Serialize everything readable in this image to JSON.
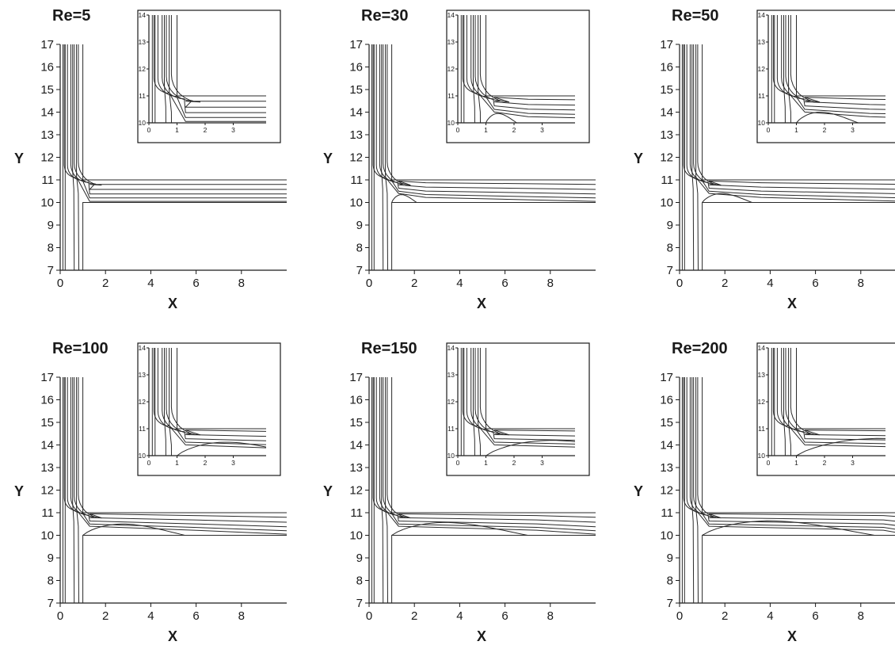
{
  "chart_data": [
    {
      "type": "line",
      "title": "Re=5",
      "re": 5,
      "xlabel": "X",
      "ylabel": "Y",
      "xlim": [
        0,
        10
      ],
      "ylim": [
        7,
        17
      ],
      "xticks": [
        "0",
        "2",
        "4",
        "6",
        "8"
      ],
      "yticks": [
        "7",
        "8",
        "9",
        "10",
        "11",
        "12",
        "13",
        "14",
        "15",
        "16",
        "17"
      ],
      "recirculation_end_x": 0,
      "inset": {
        "xlim": [
          0,
          4
        ],
        "ylim": [
          10,
          14
        ],
        "xticks": [
          "0",
          "1",
          "2",
          "3"
        ],
        "yticks": [
          "10",
          "11",
          "12",
          "13",
          "14"
        ]
      }
    },
    {
      "type": "line",
      "title": "Re=30",
      "re": 30,
      "xlabel": "X",
      "ylabel": "Y",
      "xlim": [
        0,
        10
      ],
      "ylim": [
        7,
        17
      ],
      "xticks": [
        "0",
        "2",
        "4",
        "6",
        "8"
      ],
      "yticks": [
        "7",
        "8",
        "9",
        "10",
        "11",
        "12",
        "13",
        "14",
        "15",
        "16",
        "17"
      ],
      "recirculation_end_x": 2.1,
      "inset": {
        "xlim": [
          0,
          4
        ],
        "ylim": [
          10,
          14
        ],
        "xticks": [
          "0",
          "1",
          "2",
          "3"
        ],
        "yticks": [
          "10",
          "11",
          "12",
          "13",
          "14"
        ]
      }
    },
    {
      "type": "line",
      "title": "Re=50",
      "re": 50,
      "xlabel": "X",
      "ylabel": "Y",
      "xlim": [
        0,
        10
      ],
      "ylim": [
        7,
        17
      ],
      "xticks": [
        "0",
        "2",
        "4",
        "6",
        "8"
      ],
      "yticks": [
        "7",
        "8",
        "9",
        "10",
        "11",
        "12",
        "13",
        "14",
        "15",
        "16",
        "17"
      ],
      "recirculation_end_x": 3.2,
      "inset": {
        "xlim": [
          0,
          4
        ],
        "ylim": [
          10,
          14
        ],
        "xticks": [
          "0",
          "1",
          "2",
          "3"
        ],
        "yticks": [
          "10",
          "11",
          "12",
          "13",
          "14"
        ]
      }
    },
    {
      "type": "line",
      "title": "Re=100",
      "re": 100,
      "xlabel": "X",
      "ylabel": "Y",
      "xlim": [
        0,
        10
      ],
      "ylim": [
        7,
        17
      ],
      "xticks": [
        "0",
        "2",
        "4",
        "6",
        "8"
      ],
      "yticks": [
        "7",
        "8",
        "9",
        "10",
        "11",
        "12",
        "13",
        "14",
        "15",
        "16",
        "17"
      ],
      "recirculation_end_x": 5.5,
      "inset": {
        "xlim": [
          0,
          4
        ],
        "ylim": [
          10,
          14
        ],
        "xticks": [
          "0",
          "1",
          "2",
          "3"
        ],
        "yticks": [
          "10",
          "11",
          "12",
          "13",
          "14"
        ]
      }
    },
    {
      "type": "line",
      "title": "Re=150",
      "re": 150,
      "xlabel": "X",
      "ylabel": "Y",
      "xlim": [
        0,
        10
      ],
      "ylim": [
        7,
        17
      ],
      "xticks": [
        "0",
        "2",
        "4",
        "6",
        "8"
      ],
      "yticks": [
        "7",
        "8",
        "9",
        "10",
        "11",
        "12",
        "13",
        "14",
        "15",
        "16",
        "17"
      ],
      "recirculation_end_x": 7.0,
      "inset": {
        "xlim": [
          0,
          4
        ],
        "ylim": [
          10,
          14
        ],
        "xticks": [
          "0",
          "1",
          "2",
          "3"
        ],
        "yticks": [
          "10",
          "11",
          "12",
          "13",
          "14"
        ]
      }
    },
    {
      "type": "line",
      "title": "Re=200",
      "re": 200,
      "xlabel": "X",
      "ylabel": "Y",
      "xlim": [
        0,
        10
      ],
      "ylim": [
        7,
        17
      ],
      "xticks": [
        "0",
        "2",
        "4",
        "6",
        "8"
      ],
      "yticks": [
        "7",
        "8",
        "9",
        "10",
        "11",
        "12",
        "13",
        "14",
        "15",
        "16",
        "17"
      ],
      "recirculation_end_x": 8.6,
      "inset": {
        "xlim": [
          0,
          4
        ],
        "ylim": [
          10,
          14
        ],
        "xticks": [
          "0",
          "1",
          "2",
          "3"
        ],
        "yticks": [
          "10",
          "11",
          "12",
          "13",
          "14"
        ]
      }
    }
  ]
}
